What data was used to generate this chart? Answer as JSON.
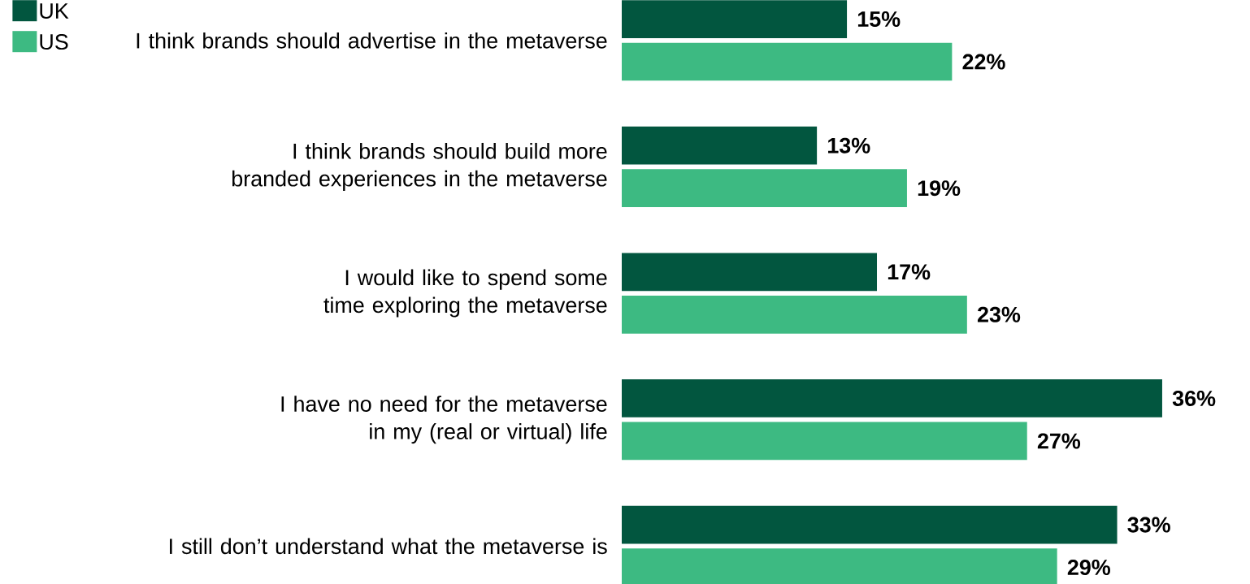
{
  "chart_data": {
    "type": "bar",
    "orientation": "horizontal",
    "categories": [
      "I think brands should advertise in the metaverse",
      "I think brands should build more branded experiences in the metaverse",
      "I would like to spend some time exploring the metaverse",
      "I have no need for the metaverse in my (real or virtual) life",
      "I still don’t understand what the metaverse is"
    ],
    "series": [
      {
        "name": "UK",
        "color": "#02563f",
        "values": [
          15,
          13,
          17,
          36,
          33
        ],
        "value_labels": [
          "15%",
          "13%",
          "17%",
          "36%",
          "33%"
        ]
      },
      {
        "name": "US",
        "color": "#3dba82",
        "values": [
          22,
          19,
          23,
          27,
          29
        ],
        "value_labels": [
          "22%",
          "19%",
          "23%",
          "27%",
          "29%"
        ]
      }
    ],
    "legend": "top left"
  }
}
